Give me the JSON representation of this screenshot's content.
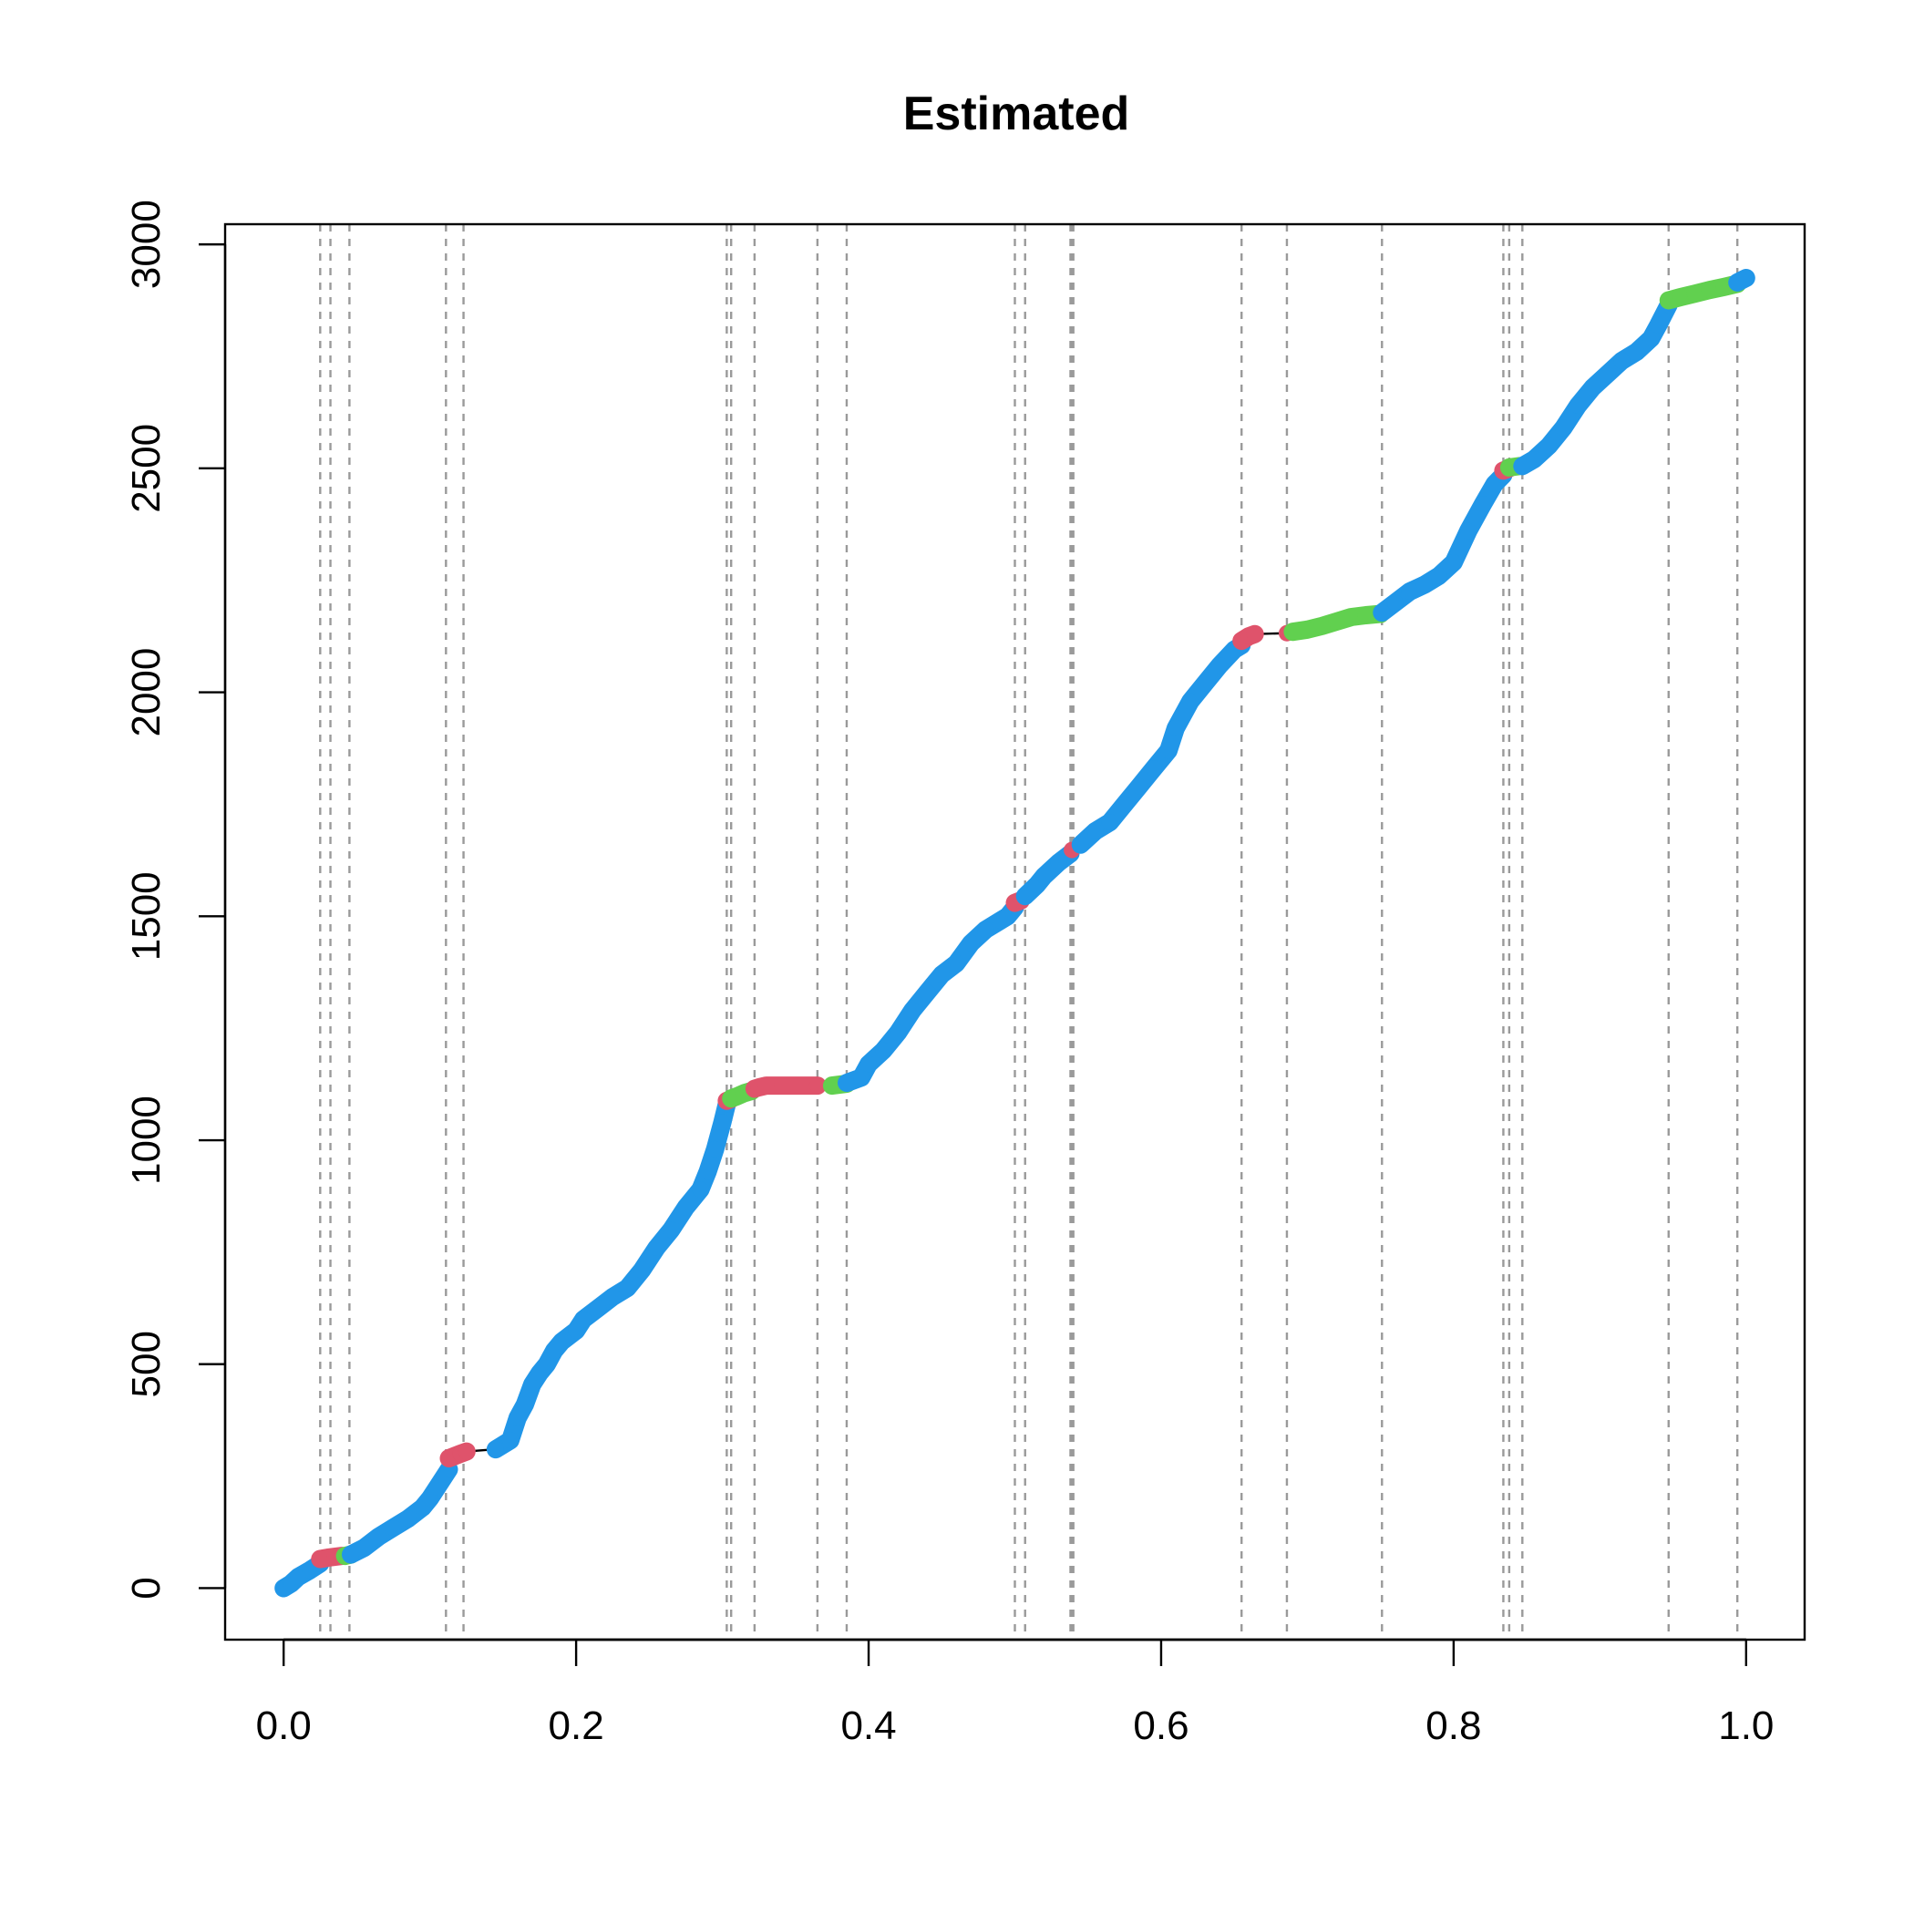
{
  "chart_data": {
    "type": "scatter",
    "title": "Estimated",
    "xlabel": "",
    "ylabel": "",
    "xlim": [
      -0.04,
      1.04
    ],
    "ylim": [
      -115,
      3045
    ],
    "xticks": [
      0.0,
      0.2,
      0.4,
      0.6,
      0.8,
      1.0
    ],
    "xtick_labels": [
      "0.0",
      "0.2",
      "0.4",
      "0.6",
      "0.8",
      "1.0"
    ],
    "yticks": [
      0,
      500,
      1000,
      1500,
      2000,
      2500,
      3000
    ],
    "ytick_labels": [
      "0",
      "500",
      "1000",
      "1500",
      "2000",
      "2500",
      "3000"
    ],
    "grid": false,
    "colors": {
      "blue": "#2196e8",
      "red": "#df536b",
      "green": "#61d04f",
      "vline": "#9a9a9a",
      "line": "#000000"
    },
    "vlines": [
      0.025,
      0.032,
      0.045,
      0.111,
      0.123,
      0.303,
      0.306,
      0.322,
      0.365,
      0.385,
      0.5,
      0.507,
      0.538,
      0.539,
      0.54,
      0.655,
      0.686,
      0.751,
      0.834,
      0.838,
      0.847,
      0.947,
      0.994
    ],
    "series": [
      {
        "color": "blue",
        "points": [
          [
            0.0,
            0
          ],
          [
            0.005,
            10
          ],
          [
            0.01,
            25
          ],
          [
            0.018,
            40
          ],
          [
            0.025,
            55
          ]
        ]
      },
      {
        "color": "red",
        "points": [
          [
            0.025,
            65
          ],
          [
            0.03,
            68
          ],
          [
            0.035,
            70
          ],
          [
            0.04,
            72
          ]
        ]
      },
      {
        "color": "green",
        "points": [
          [
            0.042,
            72
          ],
          [
            0.046,
            75
          ]
        ]
      },
      {
        "color": "blue",
        "points": [
          [
            0.046,
            75
          ],
          [
            0.055,
            90
          ],
          [
            0.065,
            115
          ],
          [
            0.075,
            135
          ],
          [
            0.085,
            155
          ],
          [
            0.095,
            180
          ],
          [
            0.1,
            200
          ],
          [
            0.105,
            225
          ],
          [
            0.11,
            250
          ],
          [
            0.113,
            265
          ]
        ]
      },
      {
        "color": "red",
        "points": [
          [
            0.113,
            290
          ],
          [
            0.117,
            295
          ],
          [
            0.121,
            300
          ],
          [
            0.125,
            305
          ]
        ]
      },
      {
        "color": "blue",
        "points": [
          [
            0.145,
            310
          ],
          [
            0.155,
            330
          ],
          [
            0.16,
            380
          ],
          [
            0.165,
            410
          ],
          [
            0.17,
            455
          ],
          [
            0.175,
            480
          ],
          [
            0.18,
            500
          ],
          [
            0.185,
            530
          ],
          [
            0.19,
            550
          ],
          [
            0.2,
            575
          ],
          [
            0.205,
            600
          ],
          [
            0.215,
            625
          ],
          [
            0.225,
            650
          ],
          [
            0.235,
            670
          ],
          [
            0.245,
            710
          ],
          [
            0.255,
            760
          ],
          [
            0.265,
            800
          ],
          [
            0.275,
            850
          ],
          [
            0.285,
            890
          ],
          [
            0.29,
            930
          ],
          [
            0.295,
            980
          ],
          [
            0.3,
            1040
          ],
          [
            0.303,
            1080
          ]
        ]
      },
      {
        "color": "red",
        "points": [
          [
            0.303,
            1088
          ],
          [
            0.306,
            1092
          ]
        ]
      },
      {
        "color": "green",
        "points": [
          [
            0.306,
            1093
          ],
          [
            0.31,
            1098
          ],
          [
            0.315,
            1105
          ],
          [
            0.32,
            1110
          ]
        ]
      },
      {
        "color": "red",
        "points": [
          [
            0.322,
            1115
          ],
          [
            0.325,
            1118
          ],
          [
            0.33,
            1122
          ],
          [
            0.365,
            1122
          ]
        ]
      },
      {
        "color": "green",
        "points": [
          [
            0.375,
            1122
          ],
          [
            0.38,
            1124
          ],
          [
            0.385,
            1126
          ]
        ]
      },
      {
        "color": "blue",
        "points": [
          [
            0.385,
            1128
          ],
          [
            0.395,
            1140
          ],
          [
            0.4,
            1170
          ],
          [
            0.41,
            1200
          ],
          [
            0.42,
            1240
          ],
          [
            0.43,
            1290
          ],
          [
            0.44,
            1330
          ],
          [
            0.45,
            1370
          ],
          [
            0.46,
            1395
          ],
          [
            0.47,
            1440
          ],
          [
            0.48,
            1470
          ],
          [
            0.49,
            1490
          ],
          [
            0.495,
            1500
          ],
          [
            0.5,
            1520
          ]
        ]
      },
      {
        "color": "red",
        "points": [
          [
            0.5,
            1530
          ],
          [
            0.504,
            1535
          ]
        ]
      },
      {
        "color": "blue",
        "points": [
          [
            0.507,
            1545
          ],
          [
            0.515,
            1570
          ],
          [
            0.52,
            1590
          ],
          [
            0.53,
            1620
          ],
          [
            0.538,
            1640
          ]
        ]
      },
      {
        "color": "red",
        "points": [
          [
            0.539,
            1648
          ]
        ]
      },
      {
        "color": "blue",
        "points": [
          [
            0.545,
            1660
          ],
          [
            0.555,
            1690
          ],
          [
            0.565,
            1710
          ],
          [
            0.575,
            1750
          ],
          [
            0.585,
            1790
          ],
          [
            0.595,
            1830
          ],
          [
            0.605,
            1870
          ],
          [
            0.61,
            1920
          ],
          [
            0.62,
            1980
          ],
          [
            0.63,
            2020
          ],
          [
            0.64,
            2060
          ],
          [
            0.65,
            2095
          ],
          [
            0.655,
            2105
          ]
        ]
      },
      {
        "color": "red",
        "points": [
          [
            0.655,
            2115
          ],
          [
            0.66,
            2125
          ],
          [
            0.664,
            2130
          ]
        ]
      },
      {
        "color": "red",
        "points": [
          [
            0.686,
            2132
          ]
        ]
      },
      {
        "color": "green",
        "points": [
          [
            0.69,
            2135
          ],
          [
            0.7,
            2140
          ],
          [
            0.71,
            2148
          ],
          [
            0.72,
            2158
          ],
          [
            0.73,
            2168
          ],
          [
            0.74,
            2172
          ],
          [
            0.75,
            2175
          ]
        ]
      },
      {
        "color": "blue",
        "points": [
          [
            0.751,
            2178
          ],
          [
            0.76,
            2200
          ],
          [
            0.77,
            2225
          ],
          [
            0.78,
            2240
          ],
          [
            0.79,
            2260
          ],
          [
            0.8,
            2290
          ],
          [
            0.81,
            2360
          ],
          [
            0.82,
            2420
          ],
          [
            0.828,
            2465
          ],
          [
            0.834,
            2485
          ]
        ]
      },
      {
        "color": "red",
        "points": [
          [
            0.834,
            2495
          ],
          [
            0.838,
            2500
          ]
        ]
      },
      {
        "color": "green",
        "points": [
          [
            0.838,
            2502
          ],
          [
            0.845,
            2505
          ]
        ]
      },
      {
        "color": "blue",
        "points": [
          [
            0.847,
            2505
          ],
          [
            0.855,
            2520
          ],
          [
            0.865,
            2550
          ],
          [
            0.875,
            2590
          ],
          [
            0.885,
            2640
          ],
          [
            0.895,
            2680
          ],
          [
            0.905,
            2710
          ],
          [
            0.915,
            2740
          ],
          [
            0.925,
            2760
          ],
          [
            0.935,
            2790
          ],
          [
            0.94,
            2820
          ],
          [
            0.947,
            2865
          ]
        ]
      },
      {
        "color": "green",
        "points": [
          [
            0.947,
            2875
          ],
          [
            0.955,
            2882
          ],
          [
            0.965,
            2890
          ],
          [
            0.975,
            2898
          ],
          [
            0.985,
            2905
          ],
          [
            0.994,
            2912
          ]
        ]
      },
      {
        "color": "blue",
        "points": [
          [
            0.994,
            2915
          ],
          [
            1.0,
            2925
          ]
        ]
      }
    ]
  }
}
